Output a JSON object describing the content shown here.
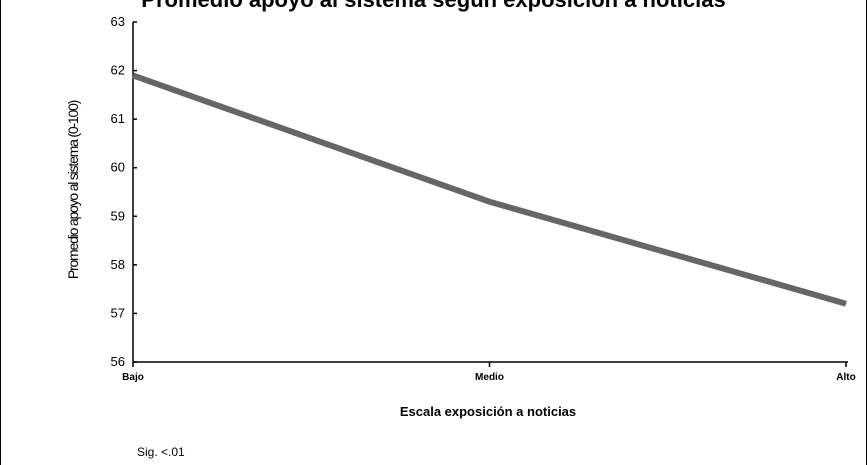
{
  "chart_data": {
    "type": "line",
    "title": "Promedio apoyo al sistema según exposición a noticias",
    "xlabel": "Escala exposición a noticias",
    "ylabel": "Promedio apoyo al sistema (0-100)",
    "categories": [
      "Bajo",
      "Medio",
      "Alto"
    ],
    "series": [
      {
        "values": [
          61.9,
          59.3,
          57.2
        ]
      }
    ],
    "ylim": [
      56,
      63
    ],
    "yticks": [
      56,
      57,
      58,
      59,
      60,
      61,
      62,
      63
    ],
    "grid": false,
    "legend": "none",
    "note": "Sig. <.01",
    "line_color": "#666666"
  }
}
